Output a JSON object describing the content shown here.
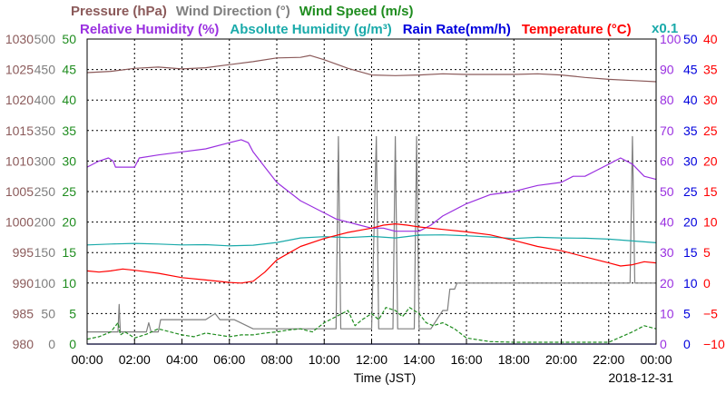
{
  "chart_data": {
    "type": "line",
    "x_unit": "hour",
    "xlim": [
      0,
      24
    ],
    "x_ticks": [
      "00:00",
      "02:00",
      "04:00",
      "06:00",
      "08:00",
      "10:00",
      "12:00",
      "14:00",
      "16:00",
      "18:00",
      "20:00",
      "22:00",
      "00:00"
    ],
    "xlabel": "Time (JST)",
    "date": "2018-12-31",
    "grid": true,
    "legend": {
      "row1": [
        {
          "text": "Pressure (hPa)",
          "color": "#8b5a5a"
        },
        {
          "text": "Wind Direction (°)",
          "color": "#7f7f7f"
        },
        {
          "text": "Wind Speed (m/s)",
          "color": "#1e8c1e"
        }
      ],
      "row2": [
        {
          "text": "Relative Humidity (%)",
          "color": "#9a30e0"
        },
        {
          "text": "Absolute Humidity (g/m³)",
          "color": "#1aaaaa"
        },
        {
          "text": "Rain Rate(mm/h)",
          "color": "#0000dd"
        },
        {
          "text": "Temperature (°C)",
          "color": "#ff0000"
        }
      ],
      "scale_note": {
        "text": "x0.1",
        "color": "#1aaaaa"
      }
    },
    "axes": {
      "pressure": {
        "min": 980,
        "max": 1030,
        "ticks": [
          "980",
          "985",
          "990",
          "995",
          "1000",
          "1005",
          "1010",
          "1015",
          "1020",
          "1025",
          "1030"
        ],
        "color": "#8b5a5a"
      },
      "wind_direction": {
        "min": 0,
        "max": 500,
        "ticks": [
          "0",
          "50",
          "100",
          "150",
          "200",
          "250",
          "300",
          "350",
          "400",
          "450",
          "500"
        ],
        "color": "#7f7f7f"
      },
      "wind_speed": {
        "min": 0,
        "max": 50,
        "ticks": [
          "0",
          "5",
          "10",
          "15",
          "20",
          "25",
          "30",
          "35",
          "40",
          "45",
          "50"
        ],
        "color": "#1e8c1e"
      },
      "humidity": {
        "min": 0,
        "max": 100,
        "ticks": [
          "0",
          "10",
          "20",
          "30",
          "40",
          "50",
          "60",
          "70",
          "80",
          "90",
          "100"
        ],
        "color": "#9a30e0"
      },
      "rain_rate": {
        "min": 0,
        "max": 50,
        "ticks": [
          "0",
          "5",
          "10",
          "15",
          "20",
          "25",
          "30",
          "35",
          "40",
          "45",
          "50"
        ],
        "color": "#0000dd"
      },
      "temperature": {
        "min": -10,
        "max": 40,
        "ticks": [
          "−10",
          "−5",
          "0",
          "5",
          "10",
          "15",
          "20",
          "25",
          "30",
          "35",
          "40"
        ],
        "color": "#ff0000"
      }
    },
    "series": [
      {
        "name": "Pressure (hPa)",
        "axis": "pressure",
        "color": "#8b5a5a",
        "x": [
          0,
          1,
          2,
          3,
          4,
          5,
          6,
          7,
          8,
          9,
          9.4,
          10,
          11,
          12,
          13,
          14,
          15,
          16,
          17,
          18,
          19,
          20,
          21,
          22,
          23,
          24
        ],
        "y": [
          1024.5,
          1024.7,
          1025.2,
          1025.4,
          1025.1,
          1025.3,
          1025.8,
          1026.3,
          1026.9,
          1027.0,
          1027.3,
          1026.6,
          1025.2,
          1024.1,
          1024.0,
          1024.1,
          1024.3,
          1024.2,
          1024.2,
          1024.2,
          1024.3,
          1024.1,
          1023.7,
          1023.4,
          1023.2,
          1023.0
        ]
      },
      {
        "name": "Wind Direction (°)",
        "axis": "wind_direction",
        "color": "#7f7f7f",
        "x": [
          0,
          1.3,
          1.35,
          1.4,
          1.5,
          2.5,
          2.6,
          2.7,
          2.8,
          3.0,
          3.1,
          3.3,
          3.4,
          4.2,
          4.5,
          5.0,
          5.4,
          5.6,
          5.8,
          6.2,
          7.0,
          8.0,
          9.0,
          9.5,
          10.0,
          10.5,
          10.6,
          10.7,
          10.9,
          11.0,
          11.5,
          12.0,
          12.2,
          12.3,
          12.4,
          12.5,
          12.9,
          13.0,
          13.1,
          13.2,
          13.5,
          13.8,
          13.9,
          14.0,
          14.1,
          14.5,
          15.0,
          15.2,
          15.3,
          15.5,
          15.6,
          16.0,
          18.0,
          20.0,
          22.0,
          22.8,
          22.9,
          23.0,
          23.1,
          23.5,
          24
        ],
        "y": [
          20,
          20,
          65,
          20,
          20,
          20,
          35,
          20,
          20,
          20,
          40,
          40,
          40,
          40,
          40,
          40,
          50,
          40,
          40,
          40,
          25,
          25,
          25,
          25,
          25,
          25,
          340,
          25,
          25,
          25,
          25,
          25,
          340,
          25,
          25,
          25,
          25,
          340,
          25,
          25,
          25,
          25,
          340,
          25,
          25,
          25,
          55,
          55,
          90,
          90,
          100,
          100,
          100,
          100,
          100,
          100,
          100,
          340,
          100,
          100,
          100
        ]
      },
      {
        "name": "Wind Speed (m/s)",
        "axis": "wind_speed",
        "color": "#1e8c1e",
        "x": [
          0,
          0.5,
          1.0,
          1.3,
          1.4,
          1.6,
          2.0,
          2.5,
          3.0,
          3.5,
          4.0,
          4.5,
          5.0,
          5.5,
          6.0,
          6.5,
          7.0,
          7.5,
          8.0,
          8.5,
          9.0,
          9.5,
          10.0,
          10.5,
          11.0,
          11.3,
          11.6,
          12.0,
          12.3,
          12.6,
          13.0,
          13.3,
          13.6,
          14.0,
          14.3,
          14.6,
          15.0,
          15.5,
          16.0,
          17.0,
          18.0,
          19.0,
          20.0,
          21.0,
          22.0,
          23.0,
          23.5,
          24
        ],
        "y": [
          0.8,
          1.2,
          2.0,
          3.5,
          1.5,
          2.0,
          1.0,
          1.6,
          2.5,
          2.0,
          1.5,
          1.2,
          1.8,
          1.5,
          1.2,
          1.5,
          1.5,
          1.8,
          2.0,
          2.3,
          2.5,
          2.0,
          3.5,
          4.5,
          5.5,
          3.0,
          4.0,
          5.0,
          4.0,
          6.0,
          5.5,
          4.5,
          6.0,
          5.0,
          3.5,
          3.0,
          3.5,
          2.5,
          1.0,
          0.4,
          0.3,
          0.3,
          0.3,
          0.3,
          0.3,
          2.0,
          3.0,
          2.5
        ]
      },
      {
        "name": "Relative Humidity (%)",
        "axis": "humidity",
        "color": "#9a30e0",
        "x": [
          0,
          0.5,
          0.9,
          1.1,
          1.2,
          2.0,
          2.2,
          3.0,
          4.0,
          5.0,
          6.0,
          6.5,
          6.8,
          7.0,
          7.5,
          8.0,
          9.0,
          10.0,
          10.5,
          11.0,
          11.5,
          12.0,
          12.5,
          13.0,
          13.5,
          14.0,
          14.5,
          15.0,
          16.0,
          17.0,
          18.0,
          18.5,
          19.0,
          20.0,
          20.5,
          21.0,
          21.5,
          22.0,
          22.5,
          23.0,
          23.5,
          24
        ],
        "y": [
          58,
          60,
          61,
          60,
          58,
          58,
          61,
          62,
          63,
          64,
          66,
          67,
          66,
          63,
          58,
          53,
          47,
          43,
          41,
          40,
          39,
          38,
          38,
          37,
          37,
          37,
          39,
          42,
          46,
          49,
          50,
          51,
          52,
          53,
          55,
          55,
          57,
          59,
          61,
          59,
          55,
          54
        ]
      },
      {
        "name": "Absolute Humidity (g/m³)",
        "axis": "humidity",
        "color": "#1aaaaa",
        "x": [
          0,
          1,
          2,
          3,
          4,
          5,
          6,
          7,
          8,
          9,
          10,
          11,
          12,
          13,
          14,
          15,
          16,
          17,
          18,
          19,
          20,
          21,
          22,
          23,
          24
        ],
        "y": [
          32.5,
          32.8,
          33.0,
          32.8,
          32.5,
          32.6,
          32.2,
          32.4,
          33.3,
          34.8,
          35.2,
          34.9,
          35.3,
          34.8,
          35.7,
          35.8,
          35.5,
          35.1,
          34.6,
          35.0,
          34.8,
          34.7,
          34.4,
          33.8,
          33.2
        ]
      },
      {
        "name": "Rain Rate(mm/h)",
        "axis": "rain_rate",
        "color": "#0000dd",
        "x": [
          0,
          24
        ],
        "y": [
          0,
          0
        ]
      },
      {
        "name": "Temperature (°C)",
        "axis": "temperature",
        "color": "#ff0000",
        "x": [
          0,
          0.5,
          1.0,
          1.5,
          2.0,
          3.0,
          4.0,
          5.0,
          6.0,
          6.5,
          7.0,
          7.5,
          8.0,
          9.0,
          10.0,
          11.0,
          12.0,
          12.5,
          13.0,
          13.5,
          14.0,
          15.0,
          16.0,
          17.0,
          18.0,
          19.0,
          20.0,
          21.0,
          22.0,
          22.5,
          23.0,
          23.5,
          24
        ],
        "y": [
          2.0,
          1.8,
          2.0,
          2.3,
          2.1,
          1.6,
          0.9,
          0.5,
          0.1,
          0.0,
          0.3,
          1.8,
          3.8,
          6.0,
          7.3,
          8.3,
          9.0,
          9.5,
          9.7,
          9.5,
          9.2,
          8.8,
          8.4,
          7.9,
          7.0,
          6.0,
          5.3,
          4.3,
          3.3,
          2.8,
          3.0,
          3.5,
          3.3
        ]
      }
    ]
  }
}
